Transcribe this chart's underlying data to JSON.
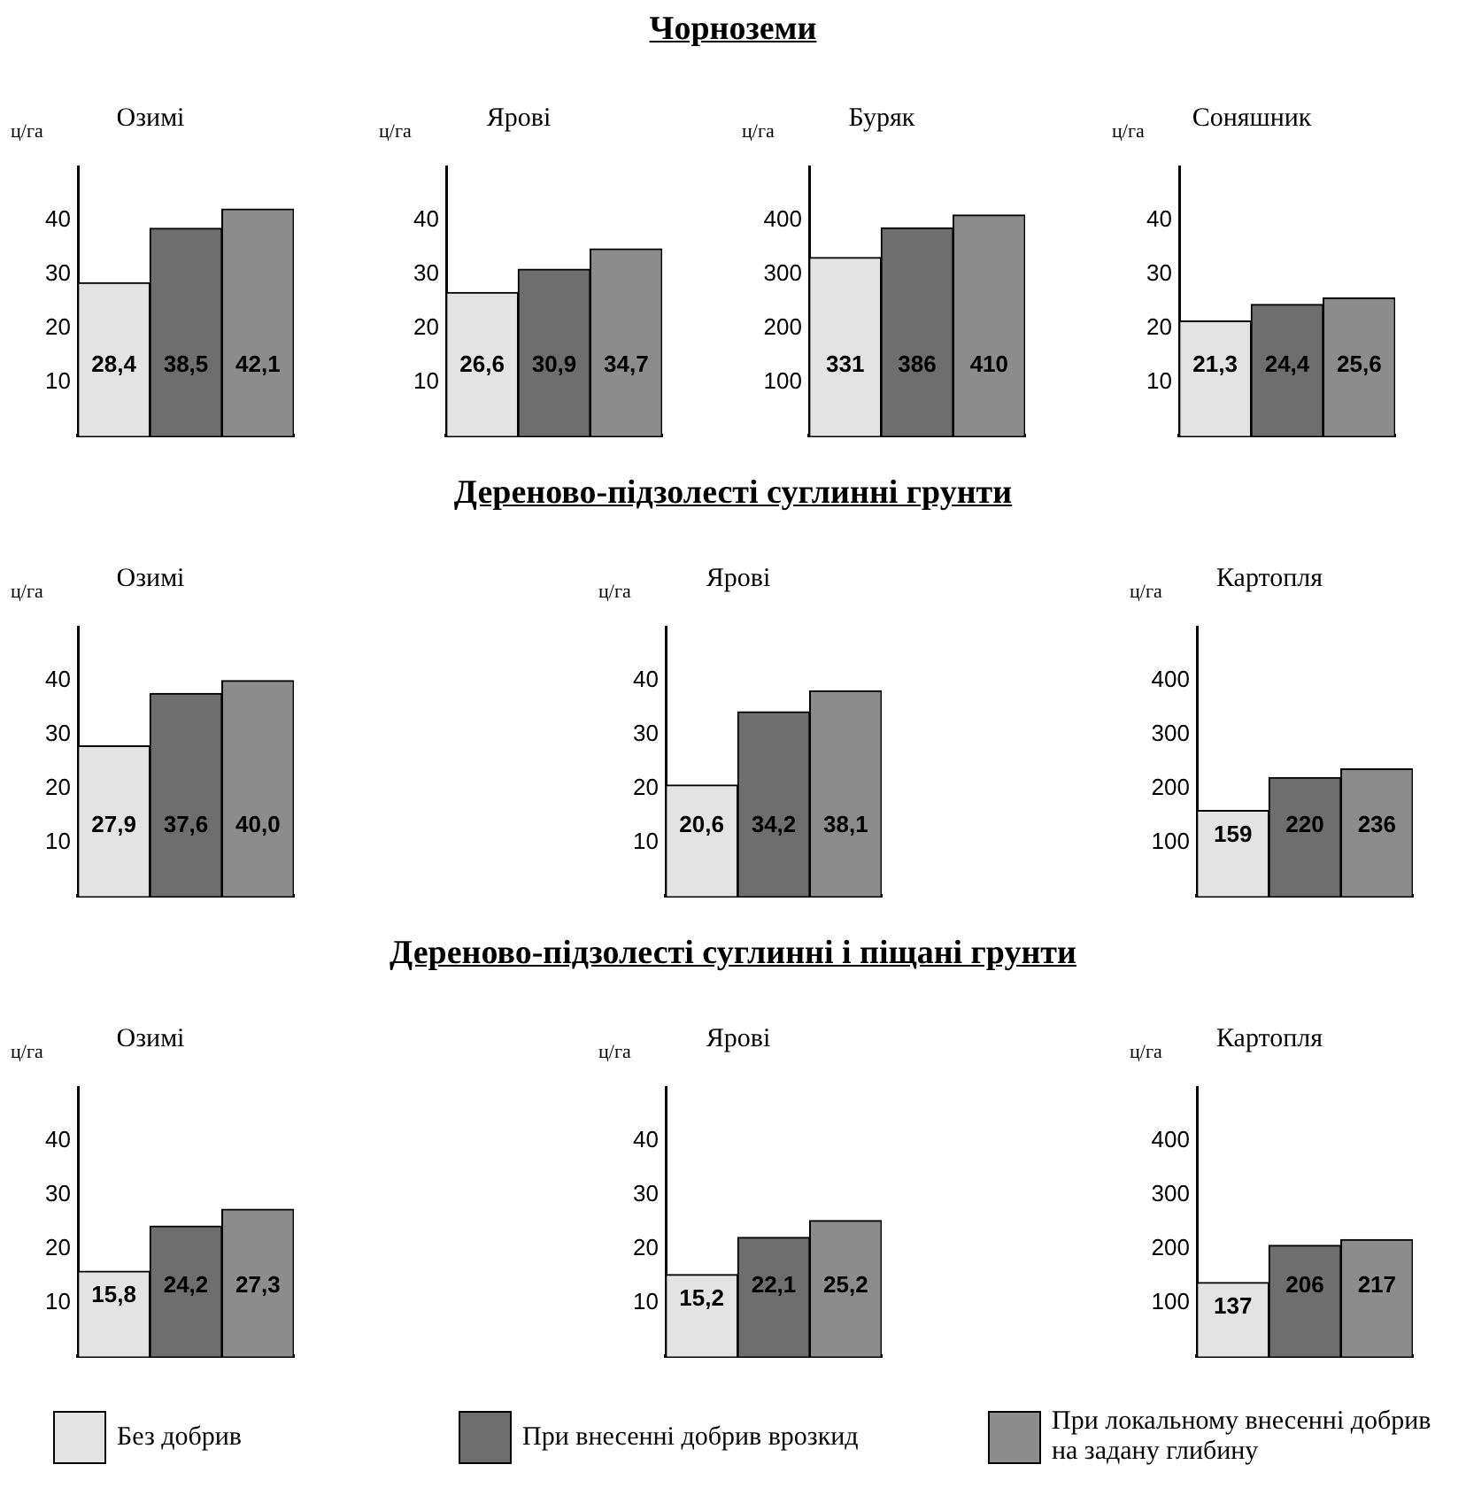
{
  "chart_data": [
    {
      "type": "bar",
      "annotations": [
        "Чорноземи"
      ],
      "title": "Озимі",
      "ylabel": "ц/га",
      "categories": [
        null
      ],
      "ylim": [
        0,
        50
      ],
      "yticks": [
        10,
        20,
        30,
        40
      ],
      "tick_labels": "y",
      "grid": false,
      "series": [
        {
          "color": "#e3e3e3",
          "values": [
            28.4
          ],
          "value_labels": [
            "28,4"
          ]
        },
        {
          "color": "#6e6e6e",
          "values": [
            38.5
          ],
          "value_labels": [
            "38,5"
          ]
        },
        {
          "color": "#8c8c8c",
          "values": [
            42.1
          ],
          "value_labels": [
            "42,1"
          ]
        }
      ]
    },
    {
      "type": "bar",
      "title": "Ярові",
      "ylabel": "ц/га",
      "categories": [
        null
      ],
      "ylim": [
        0,
        50
      ],
      "yticks": [
        10,
        20,
        30,
        40
      ],
      "tick_labels": "y",
      "grid": false,
      "series": [
        {
          "color": "#e3e3e3",
          "values": [
            26.6
          ],
          "value_labels": [
            "26,6"
          ]
        },
        {
          "color": "#6e6e6e",
          "values": [
            30.9
          ],
          "value_labels": [
            "30,9"
          ]
        },
        {
          "color": "#8c8c8c",
          "values": [
            34.7
          ],
          "value_labels": [
            "34,7"
          ]
        }
      ]
    },
    {
      "type": "bar",
      "title": "Буряк",
      "ylabel": "ц/га",
      "categories": [
        null
      ],
      "ylim": [
        0,
        500
      ],
      "yticks": [
        100,
        200,
        300,
        400
      ],
      "tick_labels": "y",
      "grid": false,
      "series": [
        {
          "color": "#e3e3e3",
          "values": [
            331
          ],
          "value_labels": [
            "331"
          ]
        },
        {
          "color": "#6e6e6e",
          "values": [
            386
          ],
          "value_labels": [
            "386"
          ]
        },
        {
          "color": "#8c8c8c",
          "values": [
            410
          ],
          "value_labels": [
            "410"
          ]
        }
      ]
    },
    {
      "type": "bar",
      "title": "Соняшник",
      "ylabel": "ц/га",
      "categories": [
        null
      ],
      "ylim": [
        0,
        50
      ],
      "yticks": [
        10,
        20,
        30,
        40
      ],
      "tick_labels": "y",
      "grid": false,
      "series": [
        {
          "color": "#e3e3e3",
          "values": [
            21.3
          ],
          "value_labels": [
            "21,3"
          ]
        },
        {
          "color": "#6e6e6e",
          "values": [
            24.4
          ],
          "value_labels": [
            "24,4"
          ]
        },
        {
          "color": "#8c8c8c",
          "values": [
            25.6
          ],
          "value_labels": [
            "25,6"
          ]
        }
      ]
    },
    {
      "type": "bar",
      "annotations": [
        "Дереново-підзолесті суглинні грунти"
      ],
      "title": "Озимі",
      "ylabel": "ц/га",
      "categories": [
        null
      ],
      "ylim": [
        0,
        50
      ],
      "yticks": [
        10,
        20,
        30,
        40
      ],
      "tick_labels": "y",
      "grid": false,
      "series": [
        {
          "color": "#e3e3e3",
          "values": [
            27.9
          ],
          "value_labels": [
            "27,9"
          ]
        },
        {
          "color": "#6e6e6e",
          "values": [
            37.6
          ],
          "value_labels": [
            "37,6"
          ]
        },
        {
          "color": "#8c8c8c",
          "values": [
            40.0
          ],
          "value_labels": [
            "40,0"
          ]
        }
      ]
    },
    {
      "type": "bar",
      "title": "Ярові",
      "ylabel": "ц/га",
      "categories": [
        null
      ],
      "ylim": [
        0,
        50
      ],
      "yticks": [
        10,
        20,
        30,
        40
      ],
      "tick_labels": "y",
      "grid": false,
      "series": [
        {
          "color": "#e3e3e3",
          "values": [
            20.6
          ],
          "value_labels": [
            "20,6"
          ]
        },
        {
          "color": "#6e6e6e",
          "values": [
            34.2
          ],
          "value_labels": [
            "34,2"
          ]
        },
        {
          "color": "#8c8c8c",
          "values": [
            38.1
          ],
          "value_labels": [
            "38,1"
          ]
        }
      ]
    },
    {
      "type": "bar",
      "title": "Картопля",
      "ylabel": "ц/га",
      "categories": [
        null
      ],
      "ylim": [
        0,
        500
      ],
      "yticks": [
        100,
        200,
        300,
        400
      ],
      "tick_labels": "y",
      "grid": false,
      "series": [
        {
          "color": "#e3e3e3",
          "values": [
            159
          ],
          "value_labels": [
            "159"
          ]
        },
        {
          "color": "#6e6e6e",
          "values": [
            220
          ],
          "value_labels": [
            "220"
          ]
        },
        {
          "color": "#8c8c8c",
          "values": [
            236
          ],
          "value_labels": [
            "236"
          ]
        }
      ]
    },
    {
      "type": "bar",
      "annotations": [
        "Дереново-підзолесті суглинні і піщані грунти"
      ],
      "title": "Озимі",
      "ylabel": "ц/га",
      "categories": [
        null
      ],
      "ylim": [
        0,
        50
      ],
      "yticks": [
        10,
        20,
        30,
        40
      ],
      "tick_labels": "y",
      "grid": false,
      "series": [
        {
          "color": "#e3e3e3",
          "values": [
            15.8
          ],
          "value_labels": [
            "15,8"
          ]
        },
        {
          "color": "#6e6e6e",
          "values": [
            24.2
          ],
          "value_labels": [
            "24,2"
          ]
        },
        {
          "color": "#8c8c8c",
          "values": [
            27.3
          ],
          "value_labels": [
            "27,3"
          ]
        }
      ]
    },
    {
      "type": "bar",
      "title": "Ярові",
      "ylabel": "ц/га",
      "categories": [
        null
      ],
      "ylim": [
        0,
        50
      ],
      "yticks": [
        10,
        20,
        30,
        40
      ],
      "tick_labels": "y",
      "grid": false,
      "series": [
        {
          "color": "#e3e3e3",
          "values": [
            15.2
          ],
          "value_labels": [
            "15,2"
          ]
        },
        {
          "color": "#6e6e6e",
          "values": [
            22.1
          ],
          "value_labels": [
            "22,1"
          ]
        },
        {
          "color": "#8c8c8c",
          "values": [
            25.2
          ],
          "value_labels": [
            "25,2"
          ]
        }
      ]
    },
    {
      "type": "bar",
      "title": "Картопля",
      "ylabel": "ц/га",
      "categories": [
        null
      ],
      "ylim": [
        0,
        500
      ],
      "yticks": [
        100,
        200,
        300,
        400
      ],
      "tick_labels": "y",
      "grid": false,
      "legend": "bottom",
      "series": [
        {
          "name": "Без добрив",
          "color": "#e3e3e3",
          "values": [
            137
          ],
          "value_labels": [
            "137"
          ]
        },
        {
          "name": "При внесенні добрив врозкид",
          "color": "#6e6e6e",
          "values": [
            206
          ],
          "value_labels": [
            "206"
          ]
        },
        {
          "name": "При локальному внесенні добрив на задану глибину",
          "color": "#8c8c8c",
          "values": [
            217
          ],
          "value_labels": [
            "217"
          ]
        }
      ]
    }
  ]
}
